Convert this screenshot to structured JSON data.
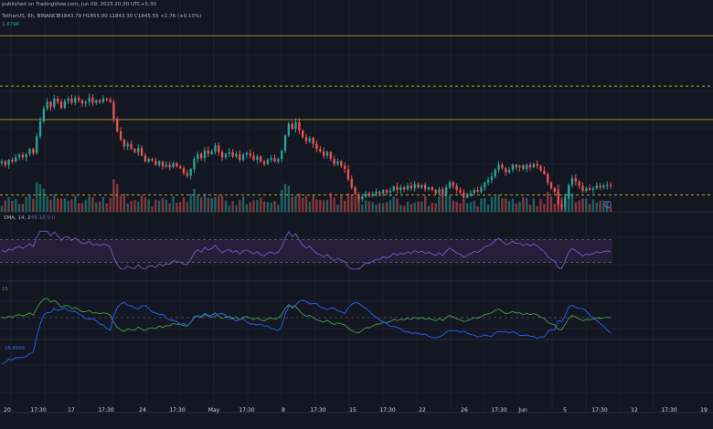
{
  "header": {
    "publish_text": "published on TradingView.com, Jun 09, 2023 20:30 UTC+5:30",
    "symbol_text": "TetherUS, 6h, BINANCE",
    "ohlc_text": "O1843.79 H1855.00 L1843.30 C1845.55 +1.76 (+0.10%)",
    "volume_text": "1.679K",
    "rsi_text": "SMA, 14, 2",
    "rsi_values": "45.16 0 0",
    "ind2_text": "15",
    "ind3_text": "26.6666"
  },
  "colors": {
    "background": "#131722",
    "grid": "#1c2030",
    "up": "#26a69a",
    "down": "#ef5350",
    "level": "#c9a227",
    "rsi_line": "#7e57c2",
    "rsi_band": "#2a2240",
    "green_line": "#43a047",
    "blue_line": "#2962ff",
    "text": "#d1d4dc",
    "last_price_badge": "#7e57c2"
  },
  "chart_data": {
    "type": "candlestick",
    "price_levels": [
      1990,
      1930,
      1890,
      1800
    ],
    "price_level_styles": [
      "solid",
      "dashed",
      "solid",
      "dashed"
    ],
    "start_price": 1838,
    "moves": [
      2,
      -4,
      6,
      -2,
      5,
      3,
      -3,
      4,
      6,
      -5,
      20,
      18,
      15,
      8,
      -6,
      10,
      -4,
      -7,
      8,
      3,
      -5,
      6,
      -3,
      -4,
      2,
      5,
      -6,
      3,
      -2,
      4,
      -1,
      -3,
      -20,
      -15,
      -10,
      -8,
      3,
      -6,
      -4,
      5,
      -9,
      -7,
      3,
      -2,
      -5,
      4,
      -6,
      2,
      -3,
      5,
      -4,
      -2,
      -6,
      -3,
      8,
      12,
      6,
      -5,
      9,
      -4,
      3,
      7,
      -8,
      -6,
      4,
      2,
      -5,
      3,
      -7,
      6,
      2,
      -3,
      -5,
      4,
      -6,
      -3,
      5,
      2,
      -4,
      3,
      10,
      18,
      14,
      -6,
      8,
      -10,
      -8,
      -5,
      4,
      -7,
      -6,
      -3,
      -5,
      4,
      -8,
      -6,
      3,
      -5,
      -4,
      -12,
      -10,
      -8,
      -6,
      3,
      4,
      -3,
      2,
      3,
      -2,
      4,
      -3,
      2,
      5,
      -4,
      3,
      -2,
      4,
      -3,
      5,
      -4,
      3,
      -5,
      2,
      -3,
      -4,
      5,
      -6,
      8,
      6,
      -4,
      -5,
      -3,
      -6,
      2,
      3,
      4,
      -2,
      5,
      6,
      3,
      4,
      8,
      6,
      -4,
      -5,
      3,
      6,
      -3,
      2,
      -4,
      5,
      -3,
      4,
      -2,
      -6,
      -4,
      -10,
      -7,
      -4,
      -15,
      -4,
      12,
      15,
      8,
      -4,
      -5,
      -6,
      3,
      -2,
      2,
      3,
      -2,
      2,
      1,
      -1
    ],
    "rsi": {
      "band": [
        30,
        70
      ],
      "start": 50
    },
    "x_tick_labels": [
      "20",
      "17:30",
      "17",
      "17:30",
      "24",
      "17:30",
      "May",
      "17:30",
      "8",
      "17:30",
      "15",
      "17:30",
      "22",
      "26",
      "17:30",
      "Jun",
      "5",
      "17:30",
      "12",
      "17:30",
      "19"
    ],
    "timeframe_label": "6h"
  }
}
